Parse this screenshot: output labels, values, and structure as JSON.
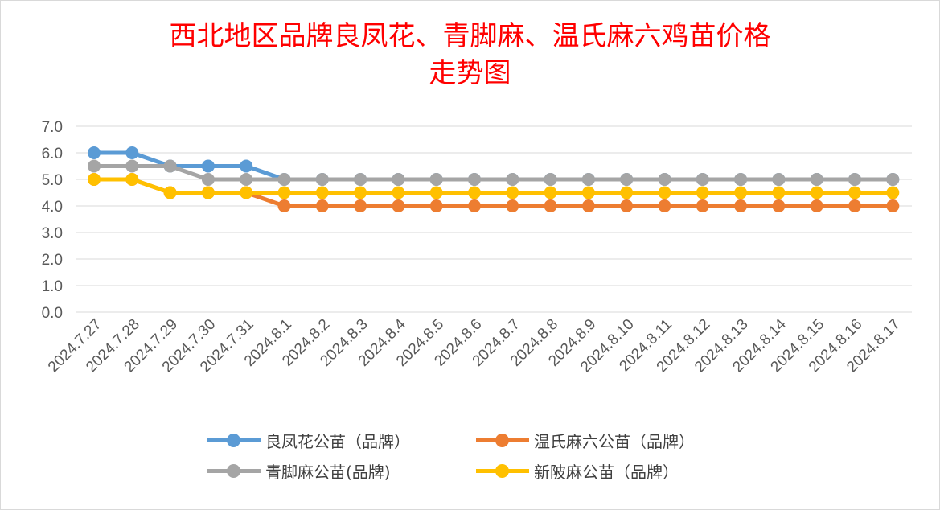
{
  "title_line1": "西北地区品牌良凤花、青脚麻、温氏麻六鸡苗价格",
  "title_line2": "走势图",
  "chart_data": {
    "type": "line",
    "title": "西北地区品牌良凤花、青脚麻、温氏麻六鸡苗价格走势图",
    "categories": [
      "2024.7.27",
      "2024.7.28",
      "2024.7.29",
      "2024.7.30",
      "2024.7.31",
      "2024.8.1",
      "2024.8.2",
      "2024.8.3",
      "2024.8.4",
      "2024.8.5",
      "2024.8.6",
      "2024.8.7",
      "2024.8.8",
      "2024.8.9",
      "2024.8.10",
      "2024.8.11",
      "2024.8.12",
      "2024.8.13",
      "2024.8.14",
      "2024.8.15",
      "2024.8.16",
      "2024.8.17"
    ],
    "ylim": [
      0,
      7
    ],
    "yticks": [
      "7.0",
      "6.0",
      "5.0",
      "4.0",
      "3.0",
      "2.0",
      "1.0",
      "0.0"
    ],
    "grid": true,
    "legend_position": "bottom",
    "series": [
      {
        "name": "良凤花公苗（品牌）",
        "color": "#5b9bd5",
        "values": [
          6.0,
          6.0,
          5.5,
          5.5,
          5.5,
          5.0,
          5.0,
          5.0,
          5.0,
          5.0,
          5.0,
          5.0,
          5.0,
          5.0,
          5.0,
          5.0,
          5.0,
          5.0,
          5.0,
          5.0,
          5.0,
          5.0
        ]
      },
      {
        "name": "温氏麻六公苗（品牌）",
        "color": "#ed7d31",
        "values": [
          5.0,
          5.0,
          4.5,
          4.5,
          4.5,
          4.0,
          4.0,
          4.0,
          4.0,
          4.0,
          4.0,
          4.0,
          4.0,
          4.0,
          4.0,
          4.0,
          4.0,
          4.0,
          4.0,
          4.0,
          4.0,
          4.0
        ]
      },
      {
        "name": "青脚麻公苗(品牌)",
        "color": "#a5a5a5",
        "values": [
          5.5,
          5.5,
          5.5,
          5.0,
          5.0,
          5.0,
          5.0,
          5.0,
          5.0,
          5.0,
          5.0,
          5.0,
          5.0,
          5.0,
          5.0,
          5.0,
          5.0,
          5.0,
          5.0,
          5.0,
          5.0,
          5.0
        ]
      },
      {
        "name": "新陂麻公苗（品牌）",
        "color": "#ffc000",
        "values": [
          5.0,
          5.0,
          4.5,
          4.5,
          4.5,
          4.5,
          4.5,
          4.5,
          4.5,
          4.5,
          4.5,
          4.5,
          4.5,
          4.5,
          4.5,
          4.5,
          4.5,
          4.5,
          4.5,
          4.5,
          4.5,
          4.5
        ]
      }
    ]
  }
}
